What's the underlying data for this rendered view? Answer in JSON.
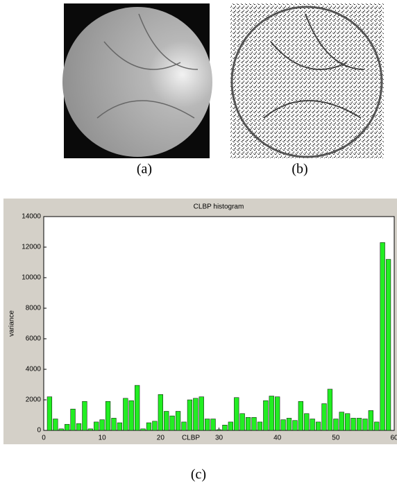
{
  "figure": {
    "captions": [
      "(a)",
      "(b)",
      "(c)"
    ]
  },
  "chart_data": {
    "type": "bar",
    "title": "CLBP histogram",
    "x_label": "CLBP",
    "y_label": "variance",
    "x": [
      1,
      2,
      3,
      4,
      5,
      6,
      7,
      8,
      9,
      10,
      11,
      12,
      13,
      14,
      15,
      16,
      17,
      18,
      19,
      20,
      21,
      22,
      23,
      24,
      25,
      26,
      27,
      28,
      29,
      30,
      31,
      32,
      33,
      34,
      35,
      36,
      37,
      38,
      39,
      40,
      41,
      42,
      43,
      44,
      45,
      46,
      47,
      48,
      49,
      50,
      51,
      52,
      53,
      54,
      55,
      56,
      57,
      58,
      59
    ],
    "values": [
      2200,
      750,
      100,
      400,
      1400,
      450,
      1900,
      100,
      550,
      700,
      1900,
      800,
      500,
      2100,
      1950,
      2950,
      100,
      500,
      600,
      2350,
      1250,
      950,
      1250,
      550,
      2000,
      2100,
      2200,
      750,
      750,
      50,
      350,
      550,
      2150,
      1100,
      850,
      850,
      550,
      1950,
      2250,
      2200,
      700,
      800,
      650,
      1900,
      1100,
      750,
      550,
      1750,
      2700,
      750,
      1200,
      1100,
      800,
      800,
      750,
      1300,
      550,
      12300,
      11200
    ],
    "color": "#22ee22",
    "xlim": [
      0,
      60
    ],
    "xticks": [
      0,
      10,
      20,
      30,
      40,
      50,
      60
    ],
    "ylim": [
      0,
      14000
    ],
    "yticks": [
      0,
      2000,
      4000,
      6000,
      8000,
      10000,
      12000,
      14000
    ]
  }
}
